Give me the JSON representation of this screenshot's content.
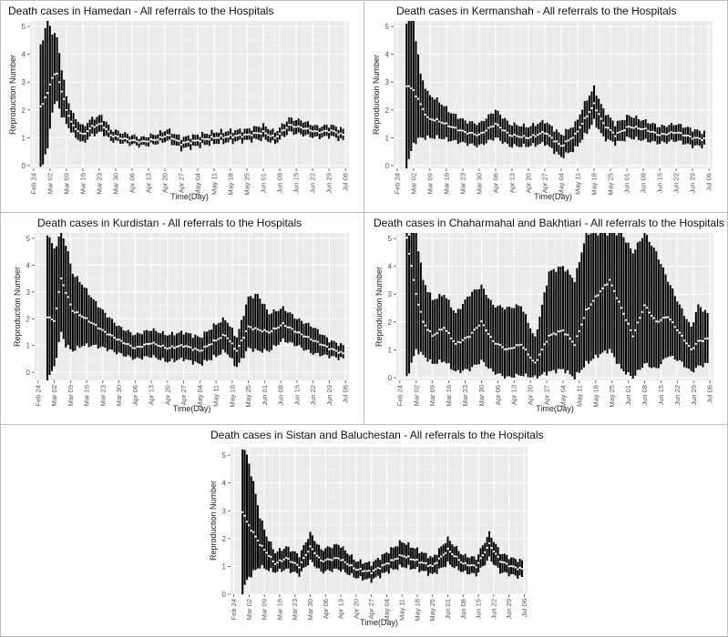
{
  "chart_data": [
    {
      "type": "errorbar",
      "title": "Death cases in Hamedan - All referrals to the Hospitals",
      "xlabel": "Time(Day)",
      "ylabel": "Reproduction Number",
      "x_start": "Feb 24",
      "x_end": "Jul 06",
      "x_ticks": [
        "Feb 24",
        "Mar 02",
        "Mar 09",
        "Mar 16",
        "Mar 23",
        "Mar 30",
        "Apr 06",
        "Apr 13",
        "Apr 20",
        "Apr 27",
        "May 04",
        "May 11",
        "May 18",
        "May 25",
        "Jun 01",
        "Jun 08",
        "Jun 15",
        "Jun 22",
        "Jun 29",
        "Jul 06"
      ],
      "y_ticks": [
        0,
        1,
        2,
        3,
        4,
        5
      ],
      "ylim": [
        -0.1,
        5.2
      ],
      "series": [
        {
          "date": "Feb 27",
          "mean": 2.1,
          "lower": -0.1,
          "upper": 4.3
        },
        {
          "date": "Mar 01",
          "mean": 2.6,
          "lower": 0.6,
          "upper": 5.2
        },
        {
          "date": "Mar 03",
          "mean": 3.2,
          "lower": 2.0,
          "upper": 4.8
        },
        {
          "date": "Mar 05",
          "mean": 3.3,
          "lower": 2.3,
          "upper": 4.6
        },
        {
          "date": "Mar 07",
          "mean": 2.7,
          "lower": 1.8,
          "upper": 3.5
        },
        {
          "date": "Mar 09",
          "mean": 2.0,
          "lower": 1.5,
          "upper": 2.5
        },
        {
          "date": "Mar 12",
          "mean": 1.4,
          "lower": 1.1,
          "upper": 1.8
        },
        {
          "date": "Mar 16",
          "mean": 1.1,
          "lower": 0.8,
          "upper": 1.4
        },
        {
          "date": "Mar 20",
          "mean": 1.4,
          "lower": 1.1,
          "upper": 1.7
        },
        {
          "date": "Mar 24",
          "mean": 1.5,
          "lower": 1.2,
          "upper": 1.8
        },
        {
          "date": "Mar 28",
          "mean": 1.1,
          "lower": 0.9,
          "upper": 1.3
        },
        {
          "date": "Apr 03",
          "mean": 0.95,
          "lower": 0.8,
          "upper": 1.15
        },
        {
          "date": "Apr 10",
          "mean": 0.85,
          "lower": 0.7,
          "upper": 1.0
        },
        {
          "date": "Apr 17",
          "mean": 0.95,
          "lower": 0.8,
          "upper": 1.15
        },
        {
          "date": "Apr 21",
          "mean": 1.1,
          "lower": 0.9,
          "upper": 1.3
        },
        {
          "date": "Apr 27",
          "mean": 0.8,
          "lower": 0.6,
          "upper": 1.0
        },
        {
          "date": "May 04",
          "mean": 0.9,
          "lower": 0.7,
          "upper": 1.1
        },
        {
          "date": "May 11",
          "mean": 1.0,
          "lower": 0.8,
          "upper": 1.2
        },
        {
          "date": "May 18",
          "mean": 1.05,
          "lower": 0.85,
          "upper": 1.25
        },
        {
          "date": "May 25",
          "mean": 1.1,
          "lower": 0.9,
          "upper": 1.3
        },
        {
          "date": "Jun 01",
          "mean": 1.2,
          "lower": 0.95,
          "upper": 1.45
        },
        {
          "date": "Jun 06",
          "mean": 1.0,
          "lower": 0.8,
          "upper": 1.2
        },
        {
          "date": "Jun 12",
          "mean": 1.45,
          "lower": 1.2,
          "upper": 1.7
        },
        {
          "date": "Jun 18",
          "mean": 1.35,
          "lower": 1.1,
          "upper": 1.6
        },
        {
          "date": "Jun 24",
          "mean": 1.2,
          "lower": 1.0,
          "upper": 1.4
        },
        {
          "date": "Jun 30",
          "mean": 1.25,
          "lower": 1.05,
          "upper": 1.45
        },
        {
          "date": "Jul 05",
          "mean": 1.1,
          "lower": 0.9,
          "upper": 1.3
        }
      ]
    },
    {
      "type": "errorbar",
      "title": "Death cases in Kermanshah - All referrals to the Hospitals",
      "xlabel": "Time(Day)",
      "ylabel": "Reproduction Number",
      "x_start": "Feb 24",
      "x_end": "Jul 06",
      "x_ticks": [
        "Feb 24",
        "Mar 02",
        "Mar 09",
        "Mar 16",
        "Mar 23",
        "Mar 30",
        "Apr 06",
        "Apr 13",
        "Apr 20",
        "Apr 27",
        "May 04",
        "May 11",
        "May 18",
        "May 25",
        "Jun 01",
        "Jun 08",
        "Jun 15",
        "Jun 22",
        "Jun 29",
        "Jul 06"
      ],
      "y_ticks": [
        0,
        1,
        2,
        3,
        4,
        5
      ],
      "ylim": [
        -0.1,
        5.2
      ],
      "series": [
        {
          "date": "Feb 28",
          "mean": 2.9,
          "lower": -0.1,
          "upper": 5.2
        },
        {
          "date": "Mar 02",
          "mean": 2.7,
          "lower": 0.8,
          "upper": 5.2
        },
        {
          "date": "Mar 05",
          "mean": 2.2,
          "lower": 1.0,
          "upper": 3.3
        },
        {
          "date": "Mar 08",
          "mean": 1.7,
          "lower": 1.0,
          "upper": 2.6
        },
        {
          "date": "Mar 13",
          "mean": 1.6,
          "lower": 1.0,
          "upper": 2.3
        },
        {
          "date": "Mar 18",
          "mean": 1.4,
          "lower": 0.9,
          "upper": 1.9
        },
        {
          "date": "Mar 24",
          "mean": 1.2,
          "lower": 0.8,
          "upper": 1.6
        },
        {
          "date": "Mar 30",
          "mean": 1.1,
          "lower": 0.7,
          "upper": 1.5
        },
        {
          "date": "Apr 06",
          "mean": 1.5,
          "lower": 1.0,
          "upper": 2.0
        },
        {
          "date": "Apr 12",
          "mean": 1.1,
          "lower": 0.7,
          "upper": 1.5
        },
        {
          "date": "Apr 20",
          "mean": 1.0,
          "lower": 0.7,
          "upper": 1.4
        },
        {
          "date": "Apr 27",
          "mean": 1.2,
          "lower": 0.8,
          "upper": 1.6
        },
        {
          "date": "May 04",
          "mean": 0.7,
          "lower": 0.3,
          "upper": 1.1
        },
        {
          "date": "May 10",
          "mean": 1.1,
          "lower": 0.6,
          "upper": 1.5
        },
        {
          "date": "May 15",
          "mean": 1.8,
          "lower": 1.2,
          "upper": 2.4
        },
        {
          "date": "May 18",
          "mean": 2.2,
          "lower": 1.6,
          "upper": 2.8
        },
        {
          "date": "May 22",
          "mean": 1.5,
          "lower": 1.0,
          "upper": 2.0
        },
        {
          "date": "May 27",
          "mean": 1.1,
          "lower": 0.8,
          "upper": 1.5
        },
        {
          "date": "Jun 02",
          "mean": 1.4,
          "lower": 1.0,
          "upper": 1.8
        },
        {
          "date": "Jun 09",
          "mean": 1.3,
          "lower": 0.9,
          "upper": 1.6
        },
        {
          "date": "Jun 15",
          "mean": 1.1,
          "lower": 0.8,
          "upper": 1.4
        },
        {
          "date": "Jun 22",
          "mean": 1.2,
          "lower": 0.9,
          "upper": 1.5
        },
        {
          "date": "Jun 29",
          "mean": 1.0,
          "lower": 0.7,
          "upper": 1.3
        },
        {
          "date": "Jul 04",
          "mean": 0.95,
          "lower": 0.7,
          "upper": 1.2
        }
      ]
    },
    {
      "type": "errorbar",
      "title": "Death cases in Kurdistan - All referrals to the Hospitals",
      "xlabel": "Time(Day)",
      "ylabel": "Reproduction Number",
      "x_start": "Feb 24",
      "x_end": "Jul 06",
      "x_ticks": [
        "Feb 24",
        "Mar 02",
        "Mar 09",
        "Mar 16",
        "Mar 23",
        "Mar 30",
        "Apr 06",
        "Apr 13",
        "Apr 20",
        "Apr 27",
        "May 04",
        "May 11",
        "May 18",
        "May 25",
        "Jun 01",
        "Jun 08",
        "Jun 15",
        "Jun 22",
        "Jun 29",
        "Jul 06"
      ],
      "y_ticks": [
        0,
        1,
        2,
        3,
        4,
        5
      ],
      "ylim": [
        -0.3,
        5.2
      ],
      "series": [
        {
          "date": "Feb 28",
          "mean": 2.1,
          "lower": -0.3,
          "upper": 5.2
        },
        {
          "date": "Mar 02",
          "mean": 1.9,
          "lower": 0.2,
          "upper": 4.6
        },
        {
          "date": "Mar 05",
          "mean": 3.5,
          "lower": 1.5,
          "upper": 5.2
        },
        {
          "date": "Mar 07",
          "mean": 3.0,
          "lower": 1.0,
          "upper": 4.8
        },
        {
          "date": "Mar 10",
          "mean": 2.3,
          "lower": 0.8,
          "upper": 3.7
        },
        {
          "date": "Mar 14",
          "mean": 2.1,
          "lower": 1.0,
          "upper": 3.3
        },
        {
          "date": "Mar 19",
          "mean": 1.8,
          "lower": 1.0,
          "upper": 2.7
        },
        {
          "date": "Mar 24",
          "mean": 1.5,
          "lower": 0.9,
          "upper": 2.2
        },
        {
          "date": "Mar 30",
          "mean": 1.2,
          "lower": 0.7,
          "upper": 1.7
        },
        {
          "date": "Apr 06",
          "mean": 0.9,
          "lower": 0.5,
          "upper": 1.4
        },
        {
          "date": "Apr 13",
          "mean": 1.1,
          "lower": 0.6,
          "upper": 1.6
        },
        {
          "date": "Apr 20",
          "mean": 0.9,
          "lower": 0.4,
          "upper": 1.4
        },
        {
          "date": "Apr 27",
          "mean": 1.0,
          "lower": 0.5,
          "upper": 1.5
        },
        {
          "date": "May 04",
          "mean": 0.8,
          "lower": 0.3,
          "upper": 1.3
        },
        {
          "date": "May 11",
          "mean": 1.2,
          "lower": 0.6,
          "upper": 1.8
        },
        {
          "date": "May 15",
          "mean": 1.4,
          "lower": 0.8,
          "upper": 2.0
        },
        {
          "date": "May 20",
          "mean": 0.8,
          "lower": 0.2,
          "upper": 1.3
        },
        {
          "date": "May 25",
          "mean": 1.7,
          "lower": 0.9,
          "upper": 2.8
        },
        {
          "date": "May 29",
          "mean": 1.6,
          "lower": 0.8,
          "upper": 2.9
        },
        {
          "date": "Jun 03",
          "mean": 1.5,
          "lower": 0.8,
          "upper": 2.2
        },
        {
          "date": "Jun 09",
          "mean": 1.8,
          "lower": 1.2,
          "upper": 2.4
        },
        {
          "date": "Jun 15",
          "mean": 1.5,
          "lower": 1.0,
          "upper": 2.0
        },
        {
          "date": "Jun 22",
          "mean": 1.2,
          "lower": 0.7,
          "upper": 1.7
        },
        {
          "date": "Jun 29",
          "mean": 0.9,
          "lower": 0.6,
          "upper": 1.2
        },
        {
          "date": "Jul 05",
          "mean": 0.7,
          "lower": 0.5,
          "upper": 1.0
        }
      ]
    },
    {
      "type": "errorbar",
      "title": "Death cases in Chaharmahal and Bakhtiari - All referrals to the Hospitals",
      "xlabel": "Time(Day)",
      "ylabel": "Reproduction Number",
      "x_start": "Feb 24",
      "x_end": "Jul 06",
      "x_ticks": [
        "Feb 24",
        "Mar 02",
        "Mar 09",
        "Mar 16",
        "Mar 23",
        "Mar 30",
        "Apr 06",
        "Apr 13",
        "Apr 20",
        "Apr 27",
        "May 04",
        "May 11",
        "May 18",
        "May 25",
        "Jun 01",
        "Jun 08",
        "Jun 15",
        "Jun 22",
        "Jun 29",
        "Jul 06"
      ],
      "y_ticks": [
        0,
        1,
        2,
        3,
        4,
        5
      ],
      "ylim": [
        -0.1,
        5.2
      ],
      "series": [
        {
          "date": "Feb 27",
          "mean": 5.0,
          "lower": 0.0,
          "upper": 5.2
        },
        {
          "date": "Mar 02",
          "mean": 3.0,
          "lower": 1.0,
          "upper": 5.2
        },
        {
          "date": "Mar 05",
          "mean": 2.0,
          "lower": 0.8,
          "upper": 3.5
        },
        {
          "date": "Mar 09",
          "mean": 1.5,
          "lower": 0.5,
          "upper": 2.8
        },
        {
          "date": "Mar 14",
          "mean": 1.8,
          "lower": 0.6,
          "upper": 3.0
        },
        {
          "date": "Mar 19",
          "mean": 1.2,
          "lower": 0.2,
          "upper": 2.3
        },
        {
          "date": "Mar 25",
          "mean": 1.5,
          "lower": 0.3,
          "upper": 3.0
        },
        {
          "date": "Mar 30",
          "mean": 2.0,
          "lower": 0.6,
          "upper": 3.3
        },
        {
          "date": "Apr 04",
          "mean": 1.3,
          "lower": 0.2,
          "upper": 2.6
        },
        {
          "date": "Apr 10",
          "mean": 1.0,
          "lower": 0.0,
          "upper": 2.5
        },
        {
          "date": "Apr 16",
          "mean": 1.2,
          "lower": 0.1,
          "upper": 2.6
        },
        {
          "date": "Apr 22",
          "mean": 0.5,
          "lower": 0.0,
          "upper": 1.4
        },
        {
          "date": "Apr 28",
          "mean": 1.5,
          "lower": 0.2,
          "upper": 3.8
        },
        {
          "date": "May 04",
          "mean": 1.7,
          "lower": 0.3,
          "upper": 4.0
        },
        {
          "date": "May 09",
          "mean": 1.2,
          "lower": 0.0,
          "upper": 3.5
        },
        {
          "date": "May 14",
          "mean": 2.4,
          "lower": 0.5,
          "upper": 5.2
        },
        {
          "date": "May 19",
          "mean": 3.0,
          "lower": 0.8,
          "upper": 5.2
        },
        {
          "date": "May 24",
          "mean": 3.5,
          "lower": 1.0,
          "upper": 5.2
        },
        {
          "date": "May 29",
          "mean": 2.5,
          "lower": 0.3,
          "upper": 5.2
        },
        {
          "date": "Jun 03",
          "mean": 1.5,
          "lower": 0.0,
          "upper": 4.5
        },
        {
          "date": "Jun 08",
          "mean": 2.6,
          "lower": 0.5,
          "upper": 5.2
        },
        {
          "date": "Jun 13",
          "mean": 2.0,
          "lower": 0.3,
          "upper": 4.5
        },
        {
          "date": "Jun 18",
          "mean": 2.2,
          "lower": 0.8,
          "upper": 3.5
        },
        {
          "date": "Jun 23",
          "mean": 1.6,
          "lower": 0.6,
          "upper": 2.6
        },
        {
          "date": "Jun 28",
          "mean": 1.0,
          "lower": 0.2,
          "upper": 1.8
        },
        {
          "date": "Jul 01",
          "mean": 1.3,
          "lower": 0.4,
          "upper": 2.6
        },
        {
          "date": "Jul 05",
          "mean": 1.4,
          "lower": 0.5,
          "upper": 2.3
        }
      ]
    },
    {
      "type": "errorbar",
      "title": "Death cases in Sistan and Baluchestan - All referrals to the Hospitals",
      "xlabel": "Time(Day)",
      "ylabel": "Reproduction Number",
      "x_start": "Feb 24",
      "x_end": "Jul 06",
      "x_ticks": [
        "Feb 24",
        "Mar 02",
        "Mar 09",
        "Mar 16",
        "Mar 23",
        "Mar 30",
        "Apr 06",
        "Apr 13",
        "Apr 20",
        "Apr 27",
        "May 04",
        "May 11",
        "May 18",
        "May 25",
        "Jun 01",
        "Jun 08",
        "Jun 15",
        "Jun 22",
        "Jun 29",
        "Jul 06"
      ],
      "y_ticks": [
        0,
        1,
        2,
        3,
        4,
        5
      ],
      "ylim": [
        0,
        5.3
      ],
      "series": [
        {
          "date": "Feb 28",
          "mean": 3.0,
          "lower": 0.1,
          "upper": 5.3
        },
        {
          "date": "Mar 01",
          "mean": 2.6,
          "lower": 0.5,
          "upper": 5.0
        },
        {
          "date": "Mar 04",
          "mean": 2.2,
          "lower": 0.8,
          "upper": 4.0
        },
        {
          "date": "Mar 07",
          "mean": 1.8,
          "lower": 1.0,
          "upper": 2.8
        },
        {
          "date": "Mar 10",
          "mean": 1.5,
          "lower": 0.9,
          "upper": 2.1
        },
        {
          "date": "Mar 14",
          "mean": 1.1,
          "lower": 0.8,
          "upper": 1.5
        },
        {
          "date": "Mar 19",
          "mean": 1.3,
          "lower": 0.9,
          "upper": 1.7
        },
        {
          "date": "Mar 25",
          "mean": 1.0,
          "lower": 0.7,
          "upper": 1.4
        },
        {
          "date": "Mar 30",
          "mean": 1.7,
          "lower": 1.2,
          "upper": 2.2
        },
        {
          "date": "Apr 04",
          "mean": 1.2,
          "lower": 0.8,
          "upper": 1.6
        },
        {
          "date": "Apr 12",
          "mean": 1.3,
          "lower": 0.9,
          "upper": 1.8
        },
        {
          "date": "Apr 20",
          "mean": 0.9,
          "lower": 0.6,
          "upper": 1.2
        },
        {
          "date": "Apr 27",
          "mean": 0.8,
          "lower": 0.5,
          "upper": 1.1
        },
        {
          "date": "May 04",
          "mean": 1.1,
          "lower": 0.8,
          "upper": 1.5
        },
        {
          "date": "May 11",
          "mean": 1.4,
          "lower": 1.0,
          "upper": 1.9
        },
        {
          "date": "May 18",
          "mean": 1.2,
          "lower": 0.9,
          "upper": 1.6
        },
        {
          "date": "May 25",
          "mean": 1.0,
          "lower": 0.7,
          "upper": 1.3
        },
        {
          "date": "Jun 01",
          "mean": 1.6,
          "lower": 1.1,
          "upper": 2.0
        },
        {
          "date": "Jun 08",
          "mean": 1.1,
          "lower": 0.8,
          "upper": 1.4
        },
        {
          "date": "Jun 14",
          "mean": 1.0,
          "lower": 0.7,
          "upper": 1.3
        },
        {
          "date": "Jun 20",
          "mean": 1.8,
          "lower": 1.3,
          "upper": 2.2
        },
        {
          "date": "Jun 25",
          "mean": 1.2,
          "lower": 0.8,
          "upper": 1.5
        },
        {
          "date": "Jun 30",
          "mean": 1.0,
          "lower": 0.7,
          "upper": 1.3
        },
        {
          "date": "Jul 05",
          "mean": 0.9,
          "lower": 0.6,
          "upper": 1.2
        }
      ]
    }
  ]
}
